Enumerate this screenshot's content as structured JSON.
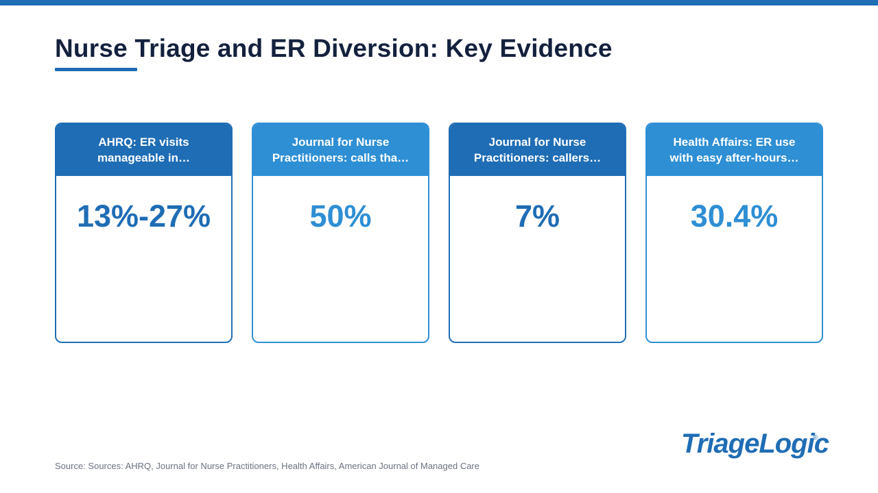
{
  "slide": {
    "title": "Nurse Triage and ER Diversion: Key Evidence",
    "source": "Source: Sources: AHRQ, Journal for Nurse Practitioners, Health Affairs, American Journal of Managed Care"
  },
  "colors": {
    "accent": "#1f6db5",
    "dark_blue": "#1f6db5",
    "light_blue": "#2e8fd4",
    "title": "#14213d"
  },
  "cards": [
    {
      "header": "AHRQ: ER visits manageable in…",
      "value": "13%-27%",
      "color": "#1f6db5"
    },
    {
      "header": "Journal for Nurse Practitioners: calls tha…",
      "value": "50%",
      "color": "#2e8fd4"
    },
    {
      "header": "Journal for Nurse Practitioners: callers…",
      "value": "7%",
      "color": "#1f6db5"
    },
    {
      "header": "Health Affairs: ER use with easy after-hours…",
      "value": "30.4%",
      "color": "#2e8fd4"
    }
  ],
  "logo": {
    "text": "TriageLogic",
    "mark": "®"
  }
}
